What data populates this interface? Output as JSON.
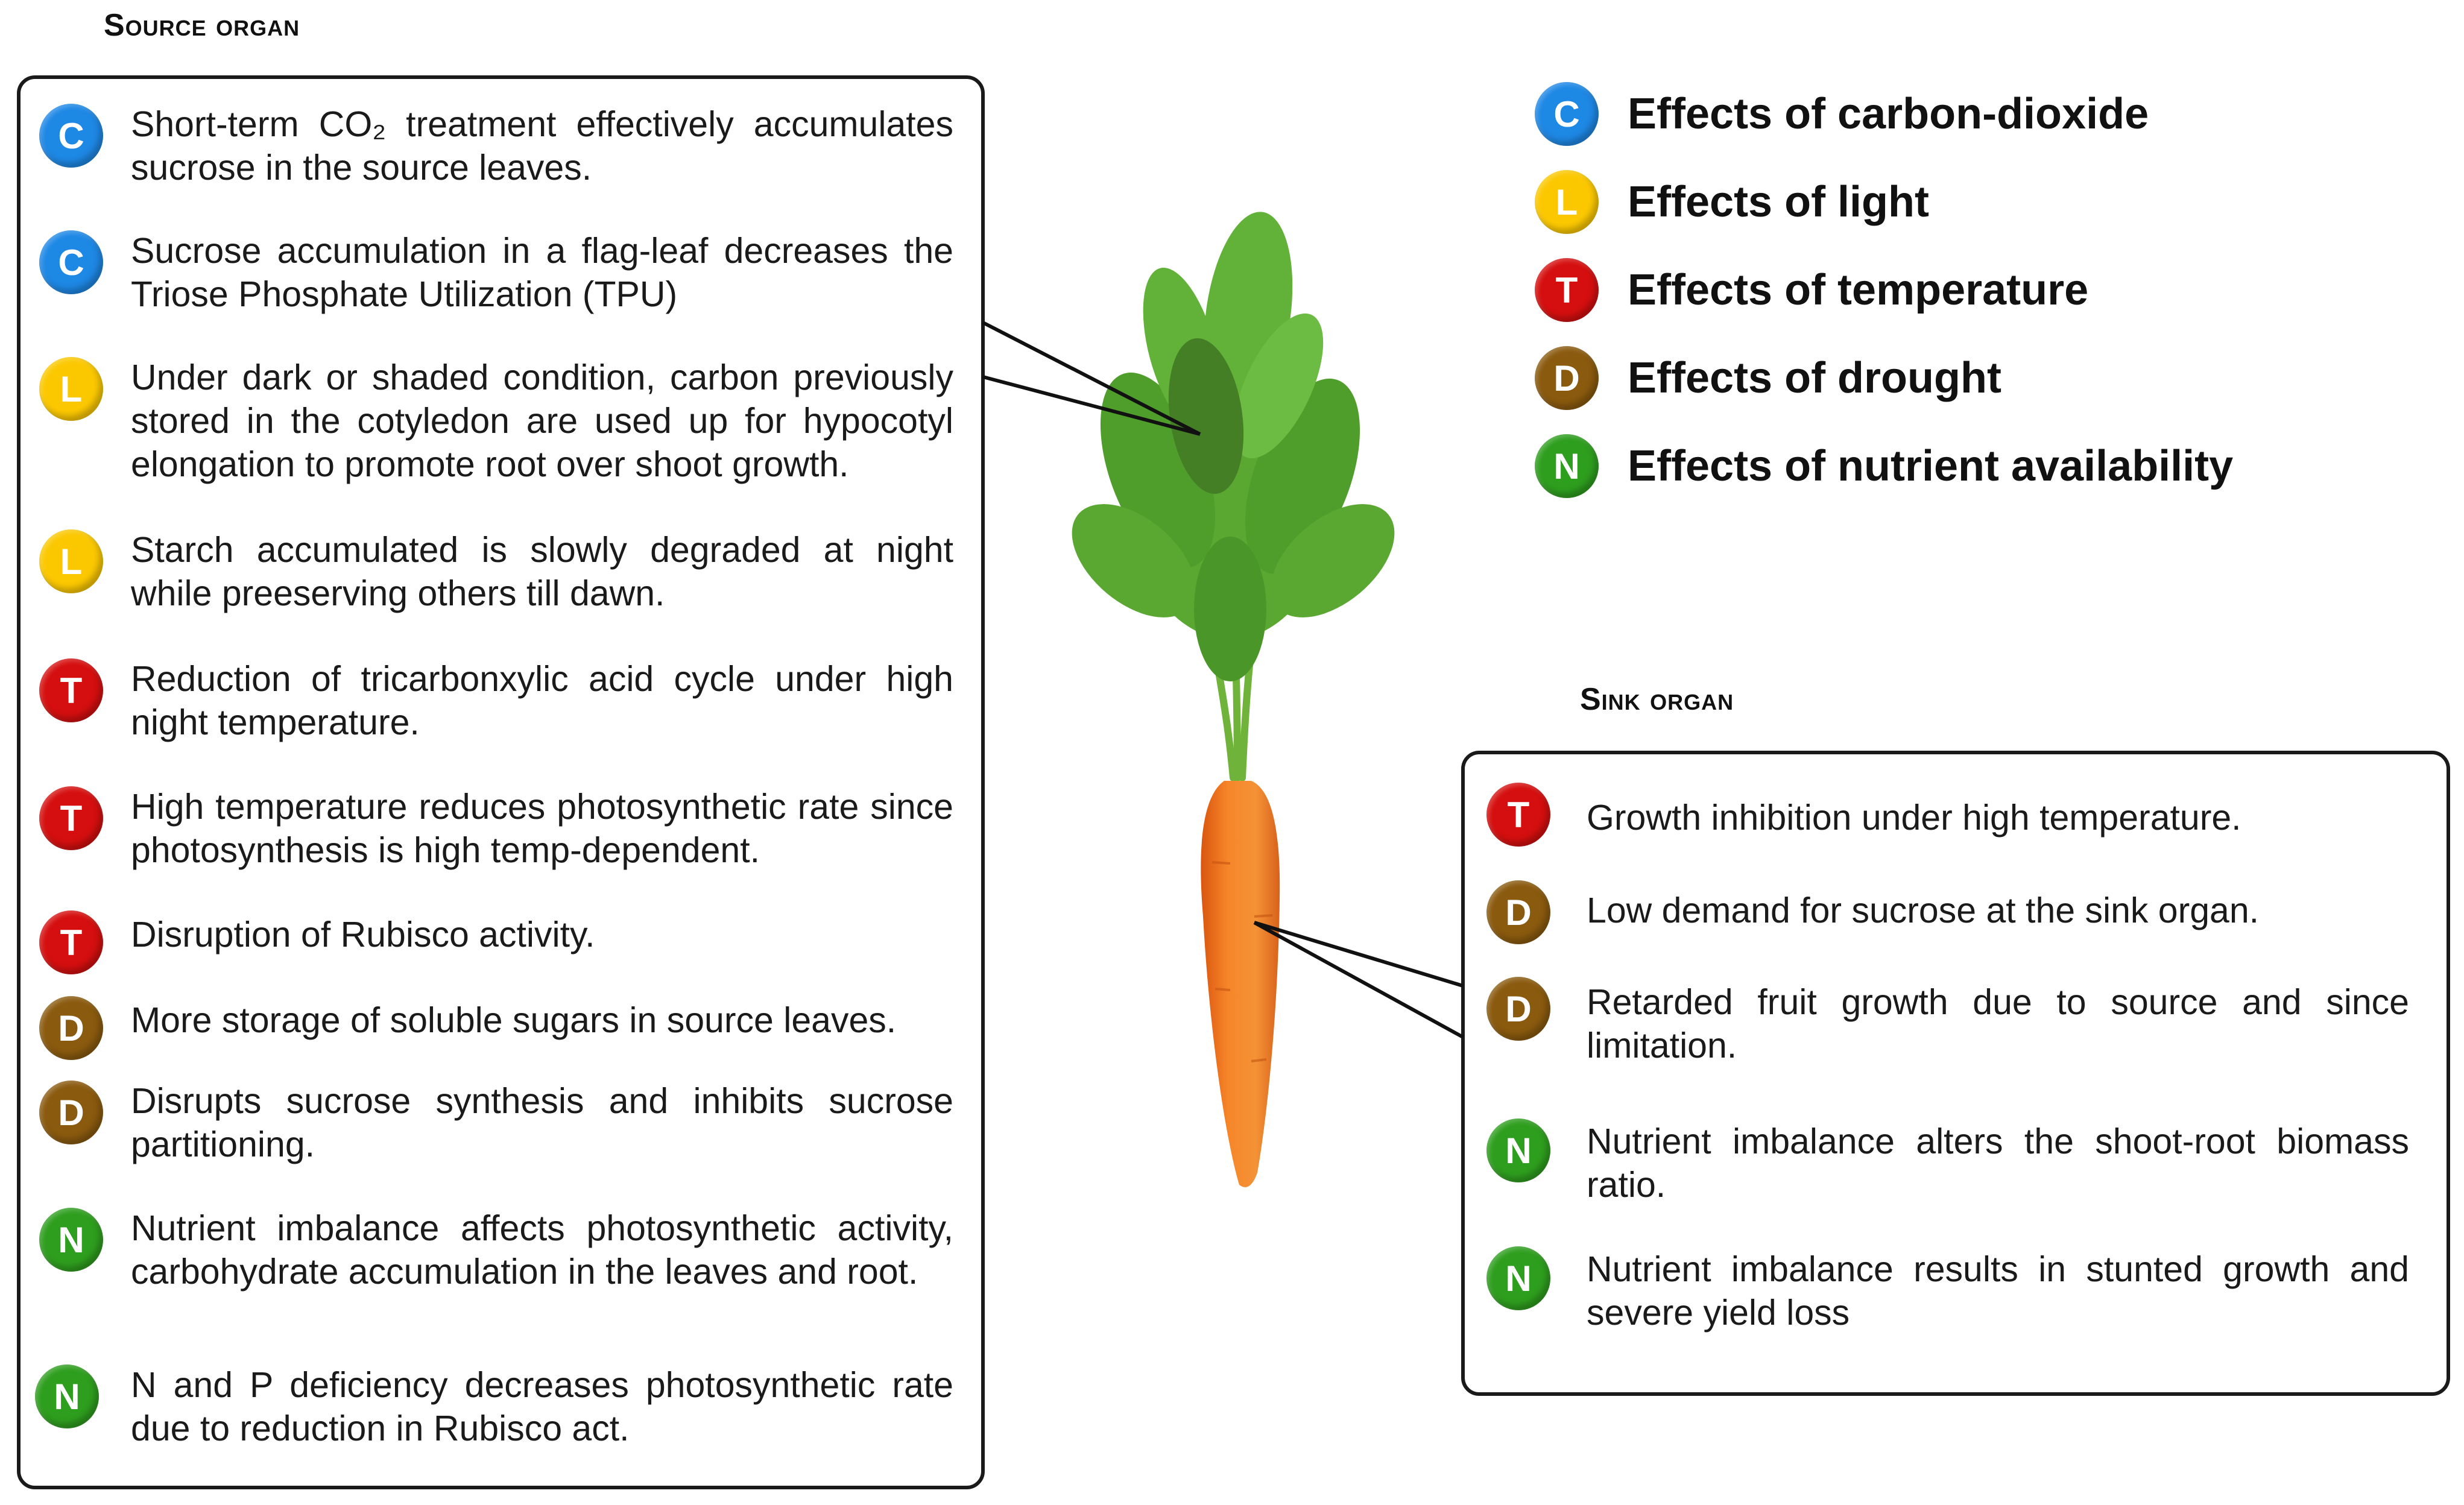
{
  "colors": {
    "C": "#1e88e5",
    "L": "#fbc800",
    "T": "#d50f0f",
    "D": "#8a5a0e",
    "N": "#2e9e1e"
  },
  "source": {
    "title": "Source organ",
    "items": [
      {
        "code": "C",
        "text": "Short-term CO₂ treatment effectively accumulates sucrose in the source leaves."
      },
      {
        "code": "C",
        "text": "Sucrose accumulation in a flag-leaf decreases the Triose Phosphate Utilization (TPU)"
      },
      {
        "code": "L",
        "text": "Under dark or shaded condition, carbon previously stored in the cotyledon are used up for hypocotyl elongation to promote root over shoot growth."
      },
      {
        "code": "L",
        "text": "Starch  accumulated is slowly degraded at night while preeserving others till dawn."
      },
      {
        "code": "T",
        "text": "Reduction of tricarbonxylic acid cycle under high night temperature."
      },
      {
        "code": "T",
        "text": "High temperature reduces photosynthetic rate since photosynthesis is high temp-dependent."
      },
      {
        "code": "T",
        "text": "Disruption of Rubisco activity."
      },
      {
        "code": "D",
        "text": "More storage of soluble sugars in source leaves."
      },
      {
        "code": "D",
        "text": "Disrupts sucrose synthesis and inhibits sucrose partitioning."
      },
      {
        "code": "N",
        "text": "Nutrient imbalance affects photosynthetic activity, carbohydrate accumulation in the leaves and root."
      },
      {
        "code": "N",
        "text": "N and P deficiency decreases photosynthetic rate due to reduction in Rubisco act."
      }
    ]
  },
  "legend": [
    {
      "code": "C",
      "label": "Effects of carbon-dioxide"
    },
    {
      "code": "L",
      "label": "Effects of light"
    },
    {
      "code": "T",
      "label": "Effects of temperature"
    },
    {
      "code": "D",
      "label": "Effects of drought"
    },
    {
      "code": "N",
      "label": "Effects of nutrient availability"
    }
  ],
  "sink": {
    "title": "Sink organ",
    "items": [
      {
        "code": "T",
        "text": "Growth inhibition under high temperature."
      },
      {
        "code": "D",
        "text": "Low demand for sucrose at the sink organ."
      },
      {
        "code": "D",
        "text": "Retarded fruit growth due to source and since limitation."
      },
      {
        "code": "N",
        "text": "Nutrient imbalance alters the shoot-root biomass ratio."
      },
      {
        "code": "N",
        "text": "Nutrient imbalance results in stunted growth and severe yield loss"
      }
    ]
  }
}
